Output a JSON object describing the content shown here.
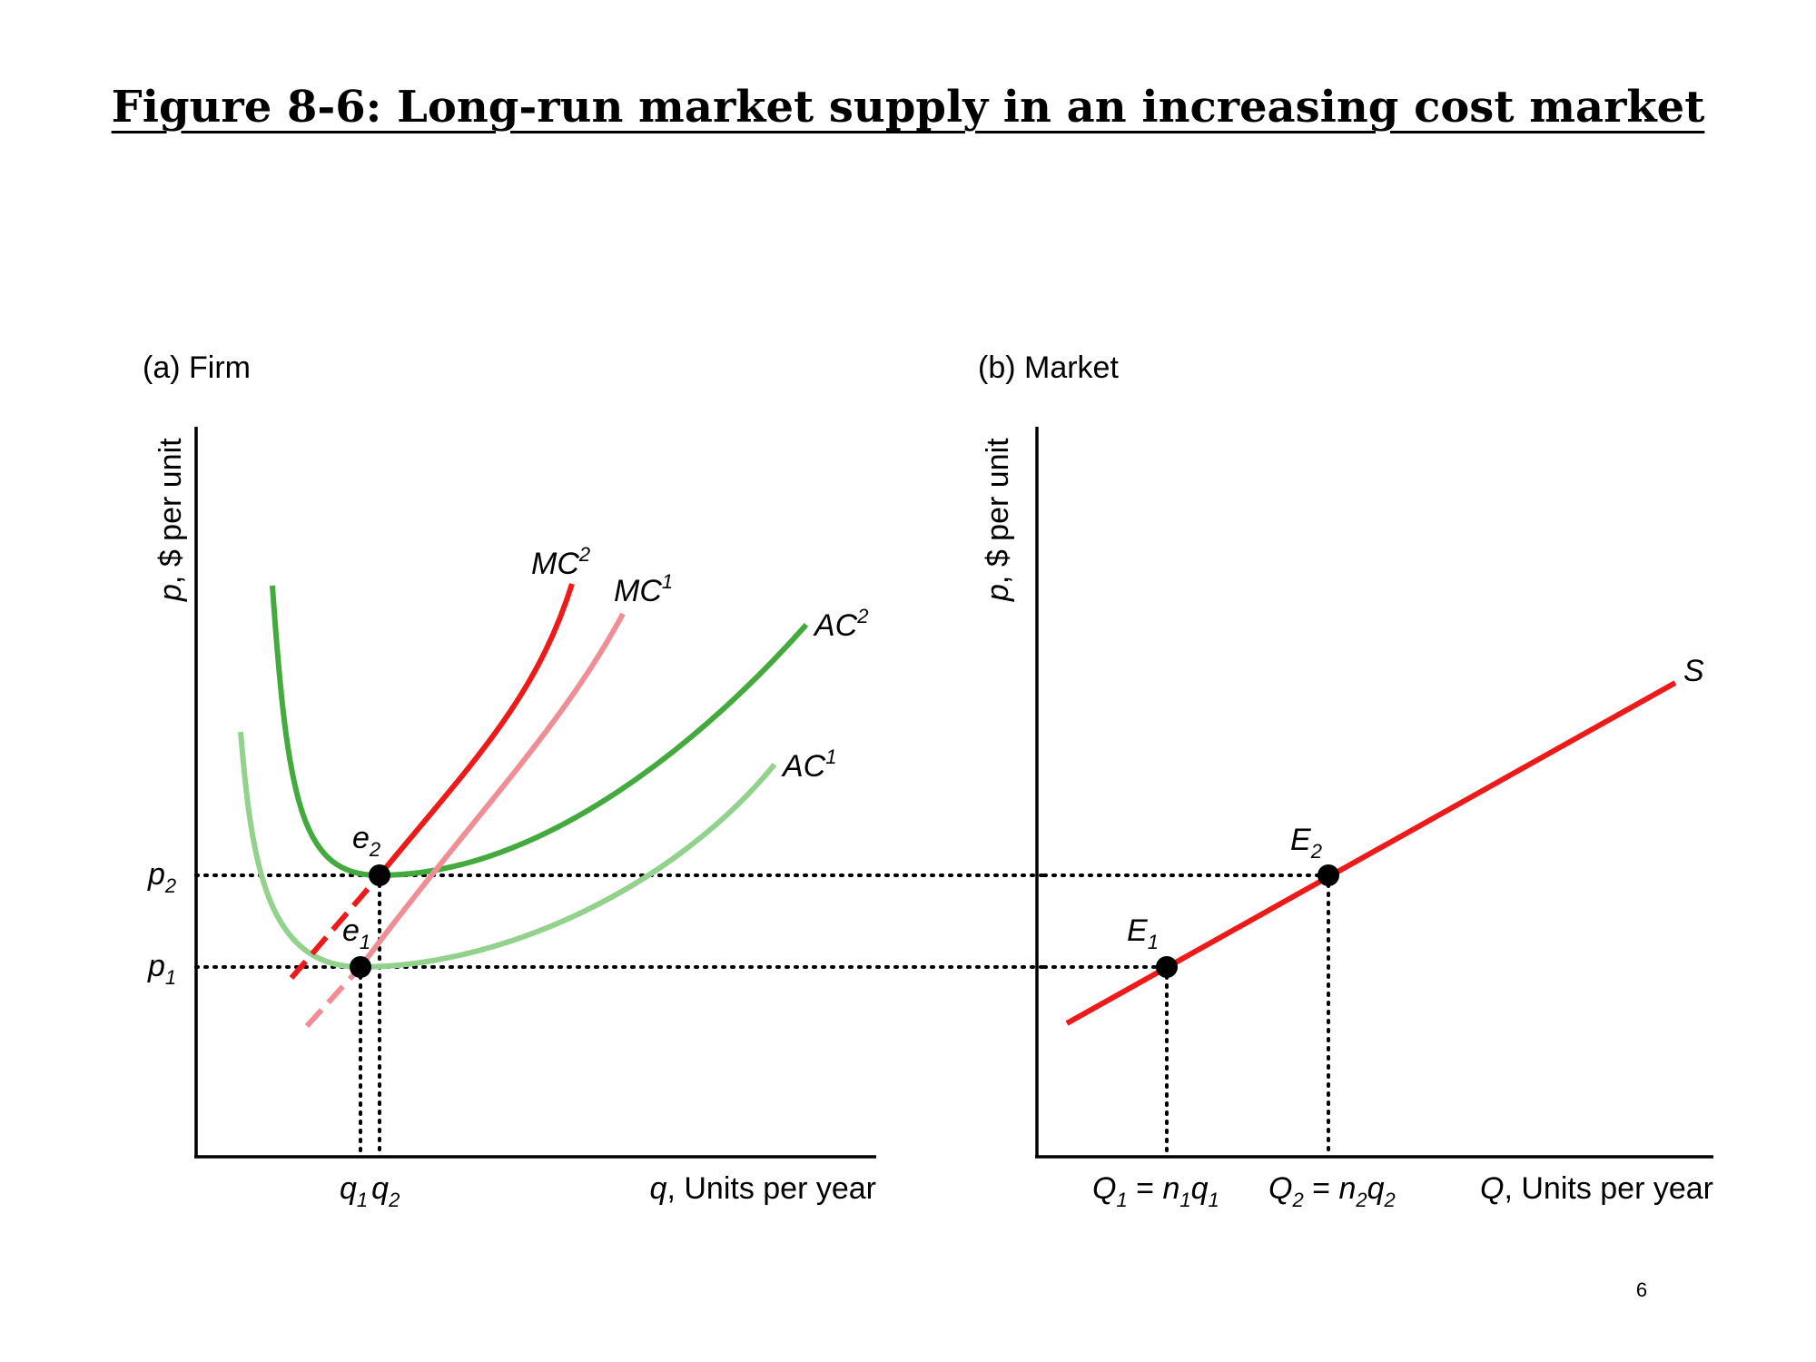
{
  "title": "Figure 8-6: Long-run market supply in an increasing cost market",
  "colors": {
    "ac1": "#92d28c",
    "ac2": "#43ab3d",
    "mc1": "#f08e96",
    "mc2": "#ee1a1a",
    "supply": "#ee1a1a",
    "points": "#000000"
  },
  "panel_a": {
    "title": "(a) Firm",
    "ylabel_var": "p",
    "ylabel_rest": ", $ per unit",
    "xlabel_var": "q",
    "xlabel_rest": ", Units per year",
    "curves": {
      "mc2": {
        "base": "MC",
        "sup": "2"
      },
      "mc1": {
        "base": "MC",
        "sup": "1"
      },
      "ac2": {
        "base": "AC",
        "sup": "2"
      },
      "ac1": {
        "base": "AC",
        "sup": "1"
      }
    },
    "points": {
      "e1": {
        "base": "e",
        "sub": "1"
      },
      "e2": {
        "base": "e",
        "sub": "2"
      }
    },
    "y_ticks": {
      "p1": {
        "base": "p",
        "sub": "1"
      },
      "p2": {
        "base": "p",
        "sub": "2"
      }
    },
    "x_ticks": {
      "q1": {
        "base": "q",
        "sub": "1"
      },
      "q2": {
        "base": "q",
        "sub": "2"
      }
    }
  },
  "panel_b": {
    "title": "(b) Market",
    "ylabel_var": "p",
    "ylabel_rest": ", $ per unit",
    "xlabel_var": "Q",
    "xlabel_rest": ", Units per year",
    "supply_label": "S",
    "points": {
      "E1": {
        "base": "E",
        "sub": "1"
      },
      "E2": {
        "base": "E",
        "sub": "2"
      }
    },
    "x_ticks": {
      "Q1": {
        "lhs": "Q",
        "lhs_sub": "1",
        "eq": " = ",
        "n": "n",
        "n_sub": "1",
        "q": "q",
        "q_sub": "1"
      },
      "Q2": {
        "lhs": "Q",
        "lhs_sub": "2",
        "eq": " = ",
        "n": "n",
        "n_sub": "2",
        "q": "q",
        "q_sub": "2"
      }
    }
  },
  "page_number": "6"
}
